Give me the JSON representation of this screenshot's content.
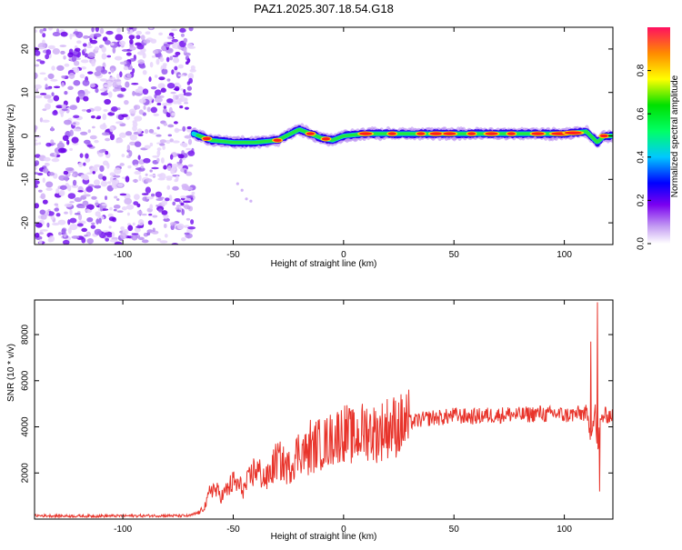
{
  "page_title": "PAZ1.2025.307.18.54.G18",
  "colors": {
    "snr_line": "#e8342b",
    "axis": "#000000"
  },
  "chart_data": [
    {
      "type": "heatmap",
      "title": "PAZ1.2025.307.18.54.G18",
      "xlabel": "Height of straight line (km)",
      "ylabel": "Frequency (Hz)",
      "xlim": [
        -140,
        122
      ],
      "ylim": [
        -25,
        25
      ],
      "xticks": [
        -100,
        -50,
        0,
        50,
        100
      ],
      "yticks": [
        -20,
        -10,
        0,
        10,
        20
      ],
      "xtick_labels": [
        "-100",
        "-50",
        "0",
        "50",
        "100"
      ],
      "ytick_labels": [
        "-20",
        "-10",
        "0",
        "10",
        "20"
      ],
      "noise_region_km": [
        -140,
        -68
      ],
      "signal_start_km": -68,
      "signal_trace": {
        "x": [
          -68,
          -60,
          -50,
          -40,
          -30,
          -20,
          -15,
          -10,
          -5,
          0,
          10,
          20,
          30,
          40,
          50,
          60,
          70,
          80,
          90,
          100,
          110,
          115,
          118,
          122
        ],
        "freq": [
          0.5,
          -1,
          -1.5,
          -1.5,
          -1,
          1.5,
          0.5,
          -0.5,
          -1,
          0,
          0.5,
          0.5,
          0.5,
          0.5,
          0.5,
          0.5,
          0.5,
          0.5,
          0.5,
          0.5,
          1,
          -1.5,
          0,
          0
        ]
      },
      "colorbar": {
        "label": "Normalized spectral amplitude",
        "range": [
          0,
          1
        ],
        "ticks": [
          0.0,
          0.2,
          0.4,
          0.6,
          0.8
        ],
        "tick_labels": [
          "0.0",
          "0.2",
          "0.4",
          "0.6",
          "0.8"
        ]
      }
    },
    {
      "type": "line",
      "title": "",
      "xlabel": "Height of straight line (km)",
      "ylabel": "SNR (10 * v/v)",
      "xlim": [
        -140,
        122
      ],
      "ylim": [
        0,
        9500
      ],
      "xticks": [
        -100,
        -50,
        0,
        50,
        100
      ],
      "yticks": [
        2000,
        4000,
        6000,
        8000
      ],
      "xtick_labels": [
        "-100",
        "-50",
        "0",
        "50",
        "100"
      ],
      "ytick_labels": [
        "2000",
        "4000",
        "6000",
        "8000"
      ],
      "series": [
        {
          "name": "SNR",
          "x": [
            -140,
            -120,
            -100,
            -80,
            -70,
            -65,
            -62,
            -60,
            -55,
            -50,
            -45,
            -40,
            -35,
            -30,
            -25,
            -20,
            -15,
            -12,
            -10,
            -5,
            0,
            5,
            10,
            15,
            20,
            25,
            30,
            35,
            40,
            45,
            50,
            55,
            60,
            65,
            70,
            75,
            80,
            85,
            90,
            92,
            95,
            100,
            105,
            110,
            112,
            114,
            115,
            116,
            118,
            122
          ],
          "y": [
            150,
            130,
            140,
            150,
            140,
            300,
            700,
            1400,
            1000,
            1600,
            1300,
            2200,
            1700,
            2600,
            2200,
            3000,
            2800,
            3300,
            3200,
            3500,
            3800,
            3500,
            3900,
            3700,
            4000,
            4050,
            4200,
            4300,
            4400,
            4400,
            4500,
            4450,
            4450,
            4500,
            4500,
            4550,
            4500,
            4550,
            4600,
            4500,
            4600,
            4500,
            4550,
            4600,
            3600,
            4800,
            2500,
            4200,
            4500,
            4500
          ]
        }
      ],
      "spikes": [
        {
          "x": -15,
          "y": 4300
        },
        {
          "x": 112,
          "y": 7700
        },
        {
          "x": 115,
          "y": 9400
        },
        {
          "x": 116,
          "y": 1200
        }
      ]
    }
  ]
}
